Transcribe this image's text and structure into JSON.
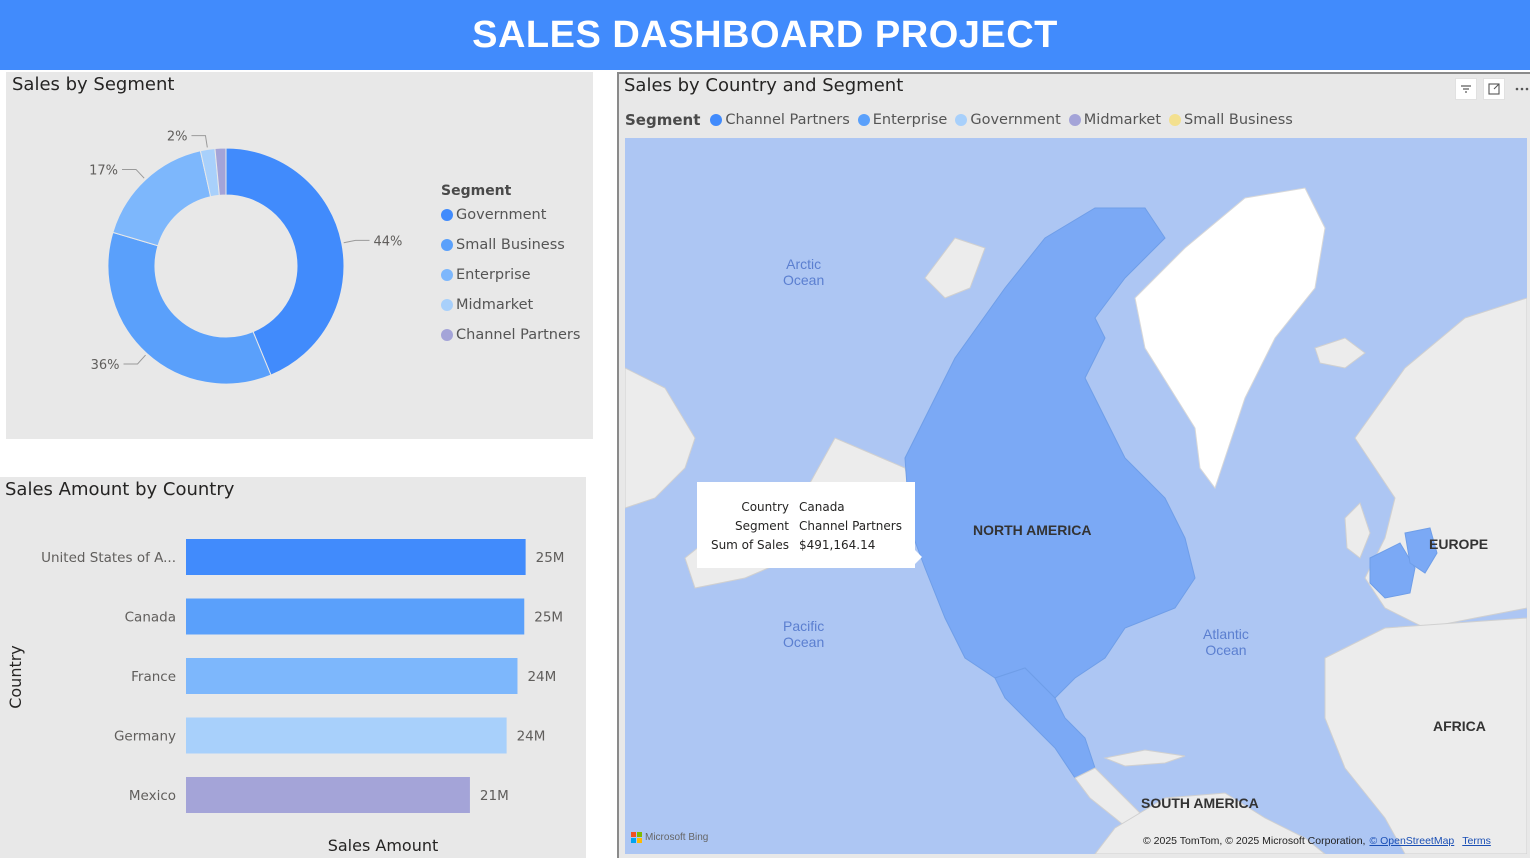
{
  "banner": {
    "title": "SALES DASHBOARD PROJECT"
  },
  "colors": {
    "banner": "#418bfc",
    "government": "#418bfc",
    "small_business": "#5aa0fb",
    "enterprise": "#7db7fc",
    "midmarket": "#a8d0fb",
    "channel_partners": "#a4a4d8",
    "small_business_legend_top": "#f3e08f"
  },
  "donut": {
    "title": "Sales by Segment",
    "legend_title": "Segment",
    "legend": [
      "Government",
      "Small Business",
      "Enterprise",
      "Midmarket",
      "Channel Partners"
    ],
    "chart_data": {
      "type": "pie",
      "title": "Sales by Segment",
      "categories": [
        "Government",
        "Small Business",
        "Enterprise",
        "Midmarket",
        "Channel Partners"
      ],
      "values": [
        44,
        36,
        17,
        2,
        1.5
      ],
      "data_labels": [
        "44%",
        "36%",
        "17%",
        "2%",
        ""
      ],
      "legend_placement": "right"
    }
  },
  "bars": {
    "title": "Sales Amount by Country",
    "xlabel": "Sales Amount",
    "ylabel": "Country",
    "chart_data": {
      "type": "bar",
      "orientation": "horizontal",
      "title": "Sales Amount by Country",
      "categories": [
        "United States of A...",
        "Canada",
        "France",
        "Germany",
        "Mexico"
      ],
      "values": [
        25.0,
        24.9,
        24.4,
        23.6,
        20.9
      ],
      "data_labels": [
        "25M",
        "25M",
        "24M",
        "24M",
        "21M"
      ],
      "xlabel": "Sales Amount",
      "ylabel": "Country",
      "xlim": [
        0,
        26.5
      ]
    }
  },
  "map": {
    "title": "Sales by Country and Segment",
    "legend_title": "Segment",
    "legend": [
      "Channel Partners",
      "Enterprise",
      "Government",
      "Midmarket",
      "Small Business"
    ],
    "oceans": {
      "arctic": "Arctic\nOcean",
      "pacific": "Pacific\nOcean",
      "atlantic": "Atlantic\nOcean"
    },
    "continents": {
      "north_america": "NORTH AMERICA",
      "europe": "EUROPE",
      "africa": "AFRICA",
      "south_america": "SOUTH AMERICA"
    },
    "tooltip": {
      "country_label": "Country",
      "country_value": "Canada",
      "segment_label": "Segment",
      "segment_value": "Channel Partners",
      "sales_label": "Sum of Sales",
      "sales_value": "$491,164.14"
    },
    "bing_logo": "Microsoft Bing",
    "attribution": "© 2025 TomTom, © 2025 Microsoft Corporation,",
    "osm_link": "© OpenStreetMap",
    "terms_link": "Terms",
    "icons": [
      "filter-icon",
      "focus-mode-icon",
      "more-options-icon"
    ]
  }
}
